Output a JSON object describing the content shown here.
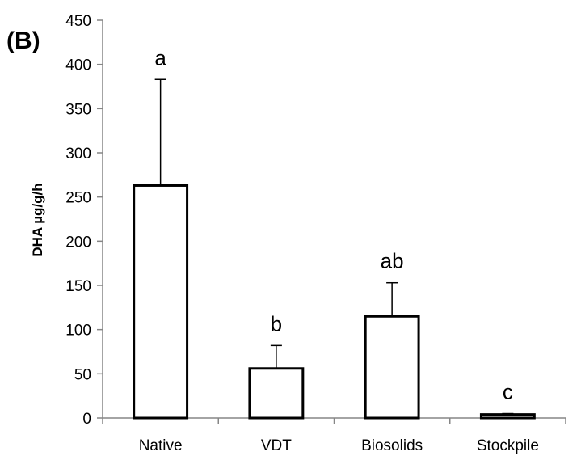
{
  "panel_label": "(B)",
  "chart_data": {
    "type": "bar",
    "title": "",
    "xlabel": "",
    "ylabel": "DHA µg/g/h",
    "ylim": [
      0,
      450
    ],
    "yticks": [
      0,
      50,
      100,
      150,
      200,
      250,
      300,
      350,
      400,
      450
    ],
    "grid": false,
    "legend": "none",
    "categories": [
      "Native",
      "VDT",
      "Biosolids",
      "Stockpile"
    ],
    "values": [
      263,
      56,
      115,
      4
    ],
    "error_upper": [
      120,
      26,
      38,
      1
    ],
    "significance_letters": [
      "a",
      "b",
      "ab",
      "c"
    ],
    "bar_fill": "#ffffff",
    "bar_edge": "#000000"
  }
}
